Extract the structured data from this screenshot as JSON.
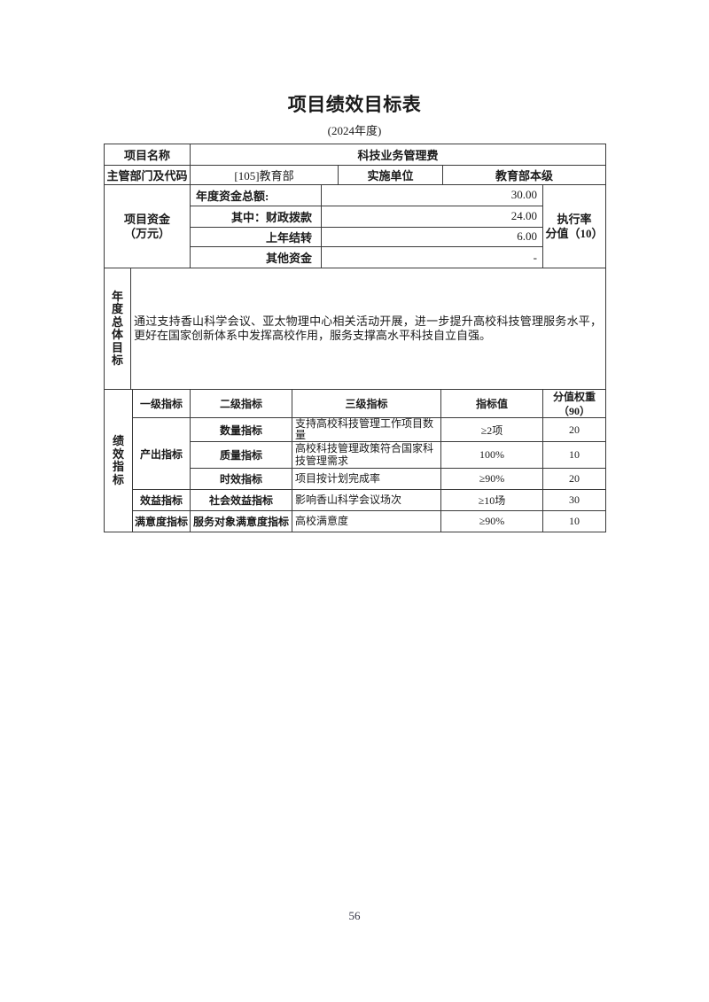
{
  "page": {
    "title": "项目绩效目标表",
    "subtitle": "(2024年度)",
    "page_number": "56"
  },
  "table": {
    "row1": {
      "label": "项目名称",
      "value": "科技业务管理费"
    },
    "row2": {
      "label": "主管部门及代码",
      "dept_value": "[105]教育部",
      "impl_label": "实施单位",
      "impl_value": "教育部本级"
    },
    "funding": {
      "label": "项目资金\n（万元）",
      "rate_label": "执行率\n分值（10）",
      "rows": [
        {
          "name": "年度资金总额:",
          "value": "30.00"
        },
        {
          "name": "其中：财政拨款",
          "value": "24.00"
        },
        {
          "name": "上年结转",
          "value": "6.00"
        },
        {
          "name": "其他资金",
          "value": "-"
        }
      ]
    },
    "goal": {
      "label": "年度总体目标",
      "text": "通过支持香山科学会议、亚太物理中心相关活动开展，进一步提升高校科技管理服务水平，更好在国家创新体系中发挥高校作用，服务支撑高水平科技自立自强。"
    },
    "indicators": {
      "label": "绩效指标",
      "headers": {
        "level1": "一级指标",
        "level2": "二级指标",
        "level3": "三级指标",
        "value": "指标值",
        "weight": "分值权重\n（90）"
      },
      "output_group_label": "产出指标",
      "rows": [
        {
          "level2": "数量指标",
          "level3": "支持高校科技管理工作项目数量",
          "value": "≥2项",
          "weight": "20"
        },
        {
          "level2": "质量指标",
          "level3": "高校科技管理政策符合国家科技管理需求",
          "value": "100%",
          "weight": "10"
        },
        {
          "level2": "时效指标",
          "level3": "项目按计划完成率",
          "value": "≥90%",
          "weight": "20"
        },
        {
          "level1": "效益指标",
          "level2": "社会效益指标",
          "level3": "影响香山科学会议场次",
          "value": "≥10场",
          "weight": "30"
        },
        {
          "level1": "满意度指标",
          "level2": "服务对象满意度指标",
          "level3": "高校满意度",
          "value": "≥90%",
          "weight": "10"
        }
      ]
    }
  }
}
